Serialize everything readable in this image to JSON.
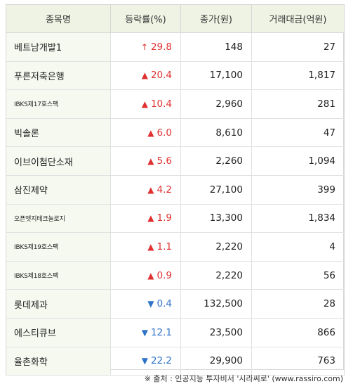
{
  "headers": [
    "종목명",
    "등락률(%)",
    "종가(원)",
    "거래대금(억원)"
  ],
  "rows": [
    {
      "name": "베트남개발1",
      "dir": "up_thin",
      "rate": "29.8",
      "close": "148",
      "amount": "27"
    },
    {
      "name": "푸른저축은행",
      "dir": "up",
      "rate": "20.4",
      "close": "17,100",
      "amount": "1,817"
    },
    {
      "name": "IBKS제17호스팩",
      "dir": "up",
      "rate": "10.4",
      "close": "2,960",
      "amount": "281"
    },
    {
      "name": "빅솔론",
      "dir": "up",
      "rate": "6.0",
      "close": "8,610",
      "amount": "47"
    },
    {
      "name": "이브이첨단소재",
      "dir": "up",
      "rate": "5.6",
      "close": "2,260",
      "amount": "1,094"
    },
    {
      "name": "삼진제약",
      "dir": "up",
      "rate": "4.2",
      "close": "27,100",
      "amount": "399"
    },
    {
      "name": "오픈엣지테크놀로지",
      "dir": "up",
      "rate": "1.9",
      "close": "13,300",
      "amount": "1,834"
    },
    {
      "name": "IBKS제19호스팩",
      "dir": "up",
      "rate": "1.1",
      "close": "2,220",
      "amount": "4"
    },
    {
      "name": "IBKS제18호스팩",
      "dir": "up",
      "rate": "0.9",
      "close": "2,220",
      "amount": "56"
    },
    {
      "name": "롯데제과",
      "dir": "down",
      "rate": "0.4",
      "close": "132,500",
      "amount": "28"
    },
    {
      "name": "에스티큐브",
      "dir": "down",
      "rate": "12.1",
      "close": "23,500",
      "amount": "866"
    },
    {
      "name": "율촌화학",
      "dir": "down",
      "rate": "22.2",
      "close": "29,900",
      "amount": "763"
    }
  ],
  "arrows": {
    "up_thin": "↑",
    "up": "▲",
    "down": "▼"
  },
  "colors": {
    "up": "#e03131",
    "down": "#2f73c9",
    "header_bg": "#eef3e4",
    "name_bg": "#f6f9f0"
  },
  "source": "※ 출처 : 인공지능 투자비서 '시라씨로' (www.rassiro.com)"
}
